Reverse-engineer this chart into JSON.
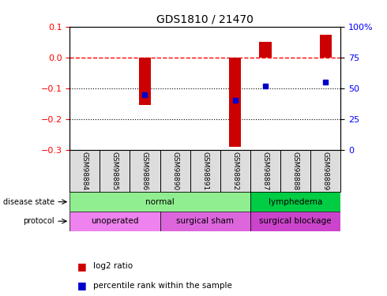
{
  "title": "GDS1810 / 21470",
  "samples": [
    "GSM98884",
    "GSM98885",
    "GSM98886",
    "GSM98890",
    "GSM98891",
    "GSM98892",
    "GSM98887",
    "GSM98888",
    "GSM98889"
  ],
  "log2_ratio": [
    0.0,
    0.0,
    -0.155,
    0.0,
    0.0,
    -0.29,
    0.05,
    0.0,
    0.075
  ],
  "percentile_rank": [
    null,
    null,
    45,
    null,
    null,
    40,
    52,
    null,
    55
  ],
  "ylim_left": [
    -0.3,
    0.1
  ],
  "ylim_right": [
    0,
    100
  ],
  "yticks_left": [
    -0.3,
    -0.2,
    -0.1,
    0.0,
    0.1
  ],
  "yticks_right": [
    0,
    25,
    50,
    75,
    100
  ],
  "hline_y": 0.0,
  "dotted_lines": [
    -0.1,
    -0.2
  ],
  "disease_state": [
    {
      "label": "normal",
      "span": [
        0,
        6
      ],
      "color": "#90EE90"
    },
    {
      "label": "lymphedema",
      "span": [
        6,
        9
      ],
      "color": "#00CC44"
    }
  ],
  "protocol": [
    {
      "label": "unoperated",
      "span": [
        0,
        3
      ],
      "color": "#EE82EE"
    },
    {
      "label": "surgical sham",
      "span": [
        3,
        6
      ],
      "color": "#DD66DD"
    },
    {
      "label": "surgical blockage",
      "span": [
        6,
        9
      ],
      "color": "#CC44CC"
    }
  ],
  "bar_color": "#CC0000",
  "dot_color": "#0000CC",
  "legend_items": [
    {
      "label": "log2 ratio",
      "color": "#CC0000"
    },
    {
      "label": "percentile rank within the sample",
      "color": "#0000CC"
    }
  ]
}
